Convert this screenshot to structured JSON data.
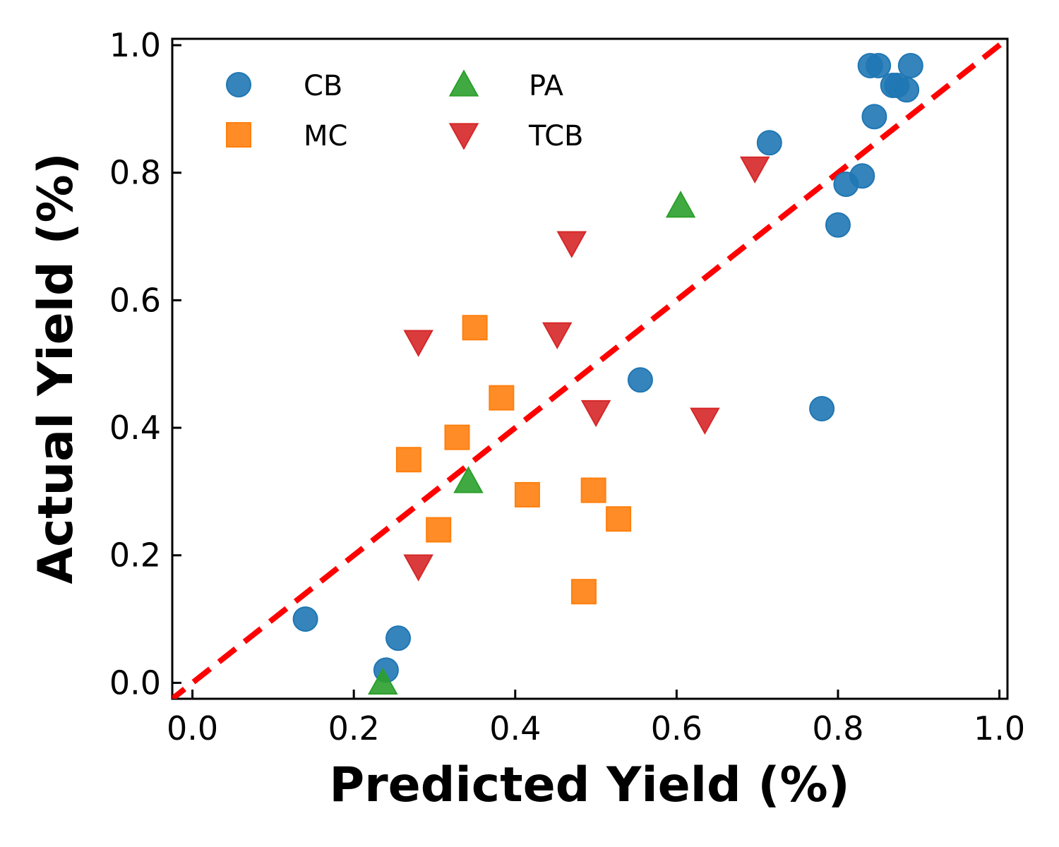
{
  "chart_data": {
    "type": "scatter",
    "title": "",
    "xlabel": "Predicted Yield (%)",
    "ylabel": "Actual Yield (%)",
    "xlim": [
      -0.025,
      1.01
    ],
    "ylim": [
      -0.025,
      1.01
    ],
    "xticks": [
      "0.0",
      "0.2",
      "0.4",
      "0.6",
      "0.8",
      "1.0"
    ],
    "yticks": [
      "0.0",
      "0.2",
      "0.4",
      "0.6",
      "0.8",
      "1.0"
    ],
    "grid": false,
    "legend": "top-left",
    "reference_line": {
      "slope": 1,
      "intercept": 0,
      "style": "dashed",
      "color": "#ff0000"
    },
    "series": [
      {
        "name": "CB",
        "marker": "circle",
        "color": "#1f77b4",
        "points": [
          [
            0.14,
            0.1
          ],
          [
            0.24,
            0.02
          ],
          [
            0.255,
            0.07
          ],
          [
            0.555,
            0.475
          ],
          [
            0.715,
            0.847
          ],
          [
            0.78,
            0.43
          ],
          [
            0.8,
            0.718
          ],
          [
            0.81,
            0.782
          ],
          [
            0.83,
            0.795
          ],
          [
            0.84,
            0.968
          ],
          [
            0.845,
            0.888
          ],
          [
            0.85,
            0.968
          ],
          [
            0.868,
            0.937
          ],
          [
            0.873,
            0.937
          ],
          [
            0.885,
            0.93
          ],
          [
            0.89,
            0.968
          ]
        ]
      },
      {
        "name": "MC",
        "marker": "square",
        "color": "#ff7f0e",
        "points": [
          [
            0.268,
            0.35
          ],
          [
            0.305,
            0.24
          ],
          [
            0.328,
            0.385
          ],
          [
            0.35,
            0.557
          ],
          [
            0.383,
            0.447
          ],
          [
            0.415,
            0.295
          ],
          [
            0.485,
            0.143
          ],
          [
            0.497,
            0.302
          ],
          [
            0.528,
            0.257
          ]
        ]
      },
      {
        "name": "PA",
        "marker": "triangle-up",
        "color": "#2ca02c",
        "points": [
          [
            0.236,
            0.0
          ],
          [
            0.342,
            0.316
          ],
          [
            0.605,
            0.748
          ]
        ]
      },
      {
        "name": "TCB",
        "marker": "triangle-down",
        "color": "#d62728",
        "points": [
          [
            0.28,
            0.535
          ],
          [
            0.28,
            0.183
          ],
          [
            0.452,
            0.547
          ],
          [
            0.47,
            0.69
          ],
          [
            0.5,
            0.425
          ],
          [
            0.635,
            0.413
          ],
          [
            0.697,
            0.807
          ]
        ]
      }
    ]
  }
}
